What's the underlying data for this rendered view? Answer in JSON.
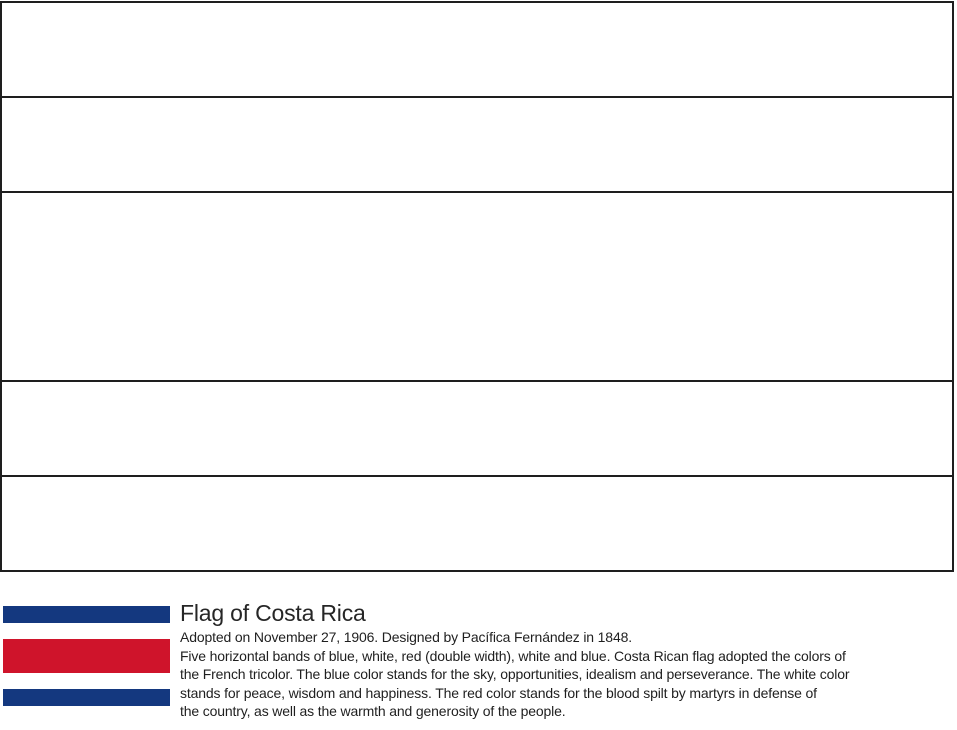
{
  "page": {
    "background": "#ffffff"
  },
  "coloring_flag": {
    "outline_color": "#1e1e1e",
    "fill_color": "#ffffff",
    "band_count": 5,
    "bands": [
      {
        "name": "blue-top",
        "ratio": 1
      },
      {
        "name": "white-upper",
        "ratio": 1
      },
      {
        "name": "red-center",
        "ratio": 2
      },
      {
        "name": "white-lower",
        "ratio": 1
      },
      {
        "name": "blue-bottom",
        "ratio": 1
      }
    ]
  },
  "legend": {
    "title": "Flag of Costa Rica",
    "colors": {
      "blue": "#14387f",
      "red": "#cf142b",
      "white": "#ffffff"
    },
    "thumbnail": {
      "stripes": [
        {
          "name": "blue-top",
          "color": "#14387f",
          "ratio": 1
        },
        {
          "name": "white-upper",
          "color": "#ffffff",
          "ratio": 1
        },
        {
          "name": "red-center",
          "color": "#cf142b",
          "ratio": 2
        },
        {
          "name": "white-lower",
          "color": "#ffffff",
          "ratio": 1
        },
        {
          "name": "blue-bottom",
          "color": "#14387f",
          "ratio": 1
        }
      ]
    },
    "lines": [
      "Adopted on November 27, 1906. Designed by Pacífica Fernández in 1848.",
      "Five horizontal bands of blue, white, red (double width), white and blue. Costa Rican flag adopted the colors of",
      "the French tricolor. The blue color stands for the sky, opportunities, idealism and perseverance. The white color",
      "stands for peace, wisdom and happiness. The red color stands for the blood spilt by martyrs in defense of",
      " the country, as well as the warmth and generosity of the people."
    ]
  }
}
